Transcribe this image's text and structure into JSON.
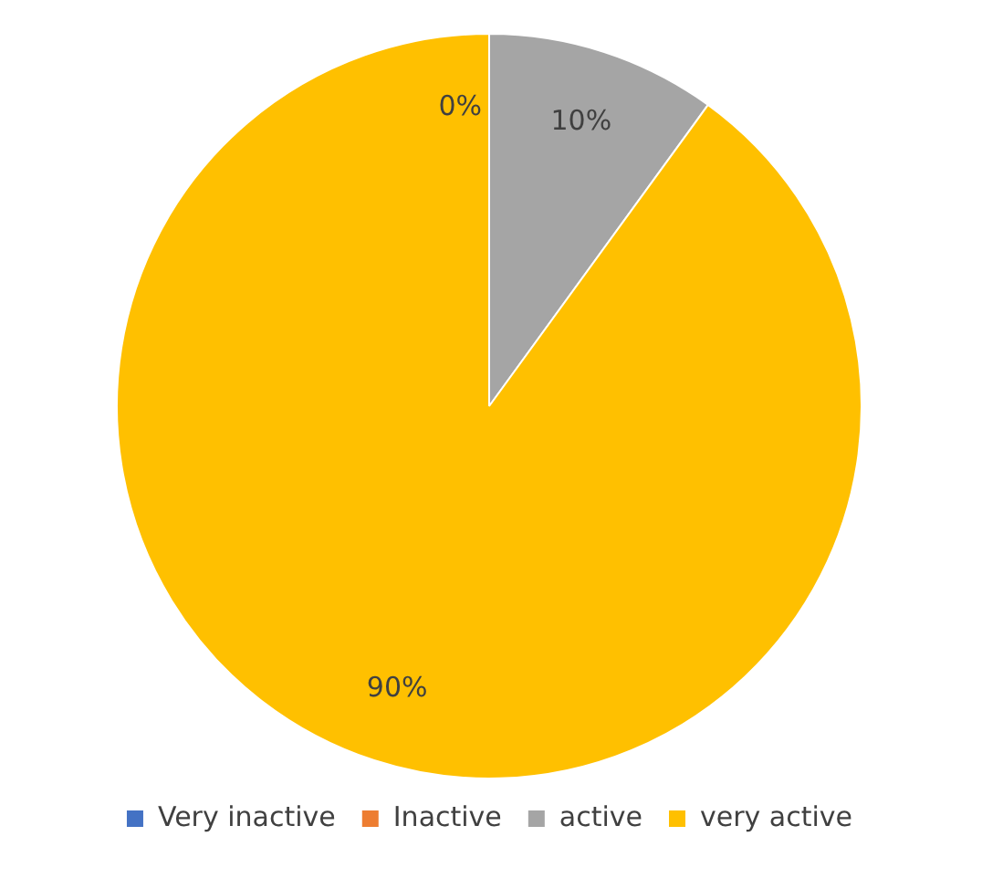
{
  "chart_data": {
    "type": "pie",
    "categories": [
      "Very inactive",
      "Inactive",
      "active",
      "very active"
    ],
    "values": [
      0,
      0,
      10,
      90
    ],
    "colors": [
      "#4472c4",
      "#ed7d31",
      "#a5a5a5",
      "#ffc000"
    ],
    "value_labels": [
      "0%",
      null,
      "10%",
      "90%"
    ],
    "legend": "bottom"
  }
}
